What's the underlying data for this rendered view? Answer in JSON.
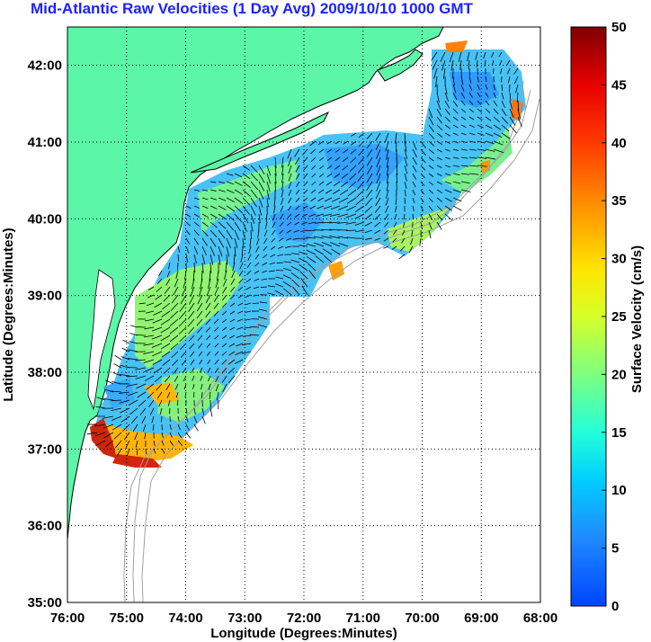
{
  "title": "Mid-Atlantic Raw Velocities (1 Day Avg) 2009/10/10 1000 GMT",
  "axes": {
    "x_label": "Longitude (Degrees:Minutes)",
    "y_label": "Latitude (Degrees:Minutes)",
    "x_ticks": [
      "76:00",
      "75:00",
      "74:00",
      "73:00",
      "72:00",
      "71:00",
      "70:00",
      "69:00",
      "68:00"
    ],
    "y_ticks": [
      "42:00",
      "41:00",
      "40:00",
      "39:00",
      "38:00",
      "37:00",
      "36:00",
      "35:00"
    ],
    "x_range": [
      -76,
      -68
    ],
    "y_range": [
      35,
      42.5
    ],
    "grid": "dotted"
  },
  "colorbar": {
    "label": "Surface Velocity (cm/s)",
    "ticks": [
      "0",
      "5",
      "10",
      "15",
      "20",
      "25",
      "30",
      "35",
      "40",
      "45",
      "50"
    ],
    "range": [
      0,
      50
    ],
    "colormap": "jet"
  },
  "colors": {
    "land": "#5cf6a8",
    "title": "#1d22ff",
    "coast": "#000000",
    "bathymetry": "#a0a0a0"
  }
}
